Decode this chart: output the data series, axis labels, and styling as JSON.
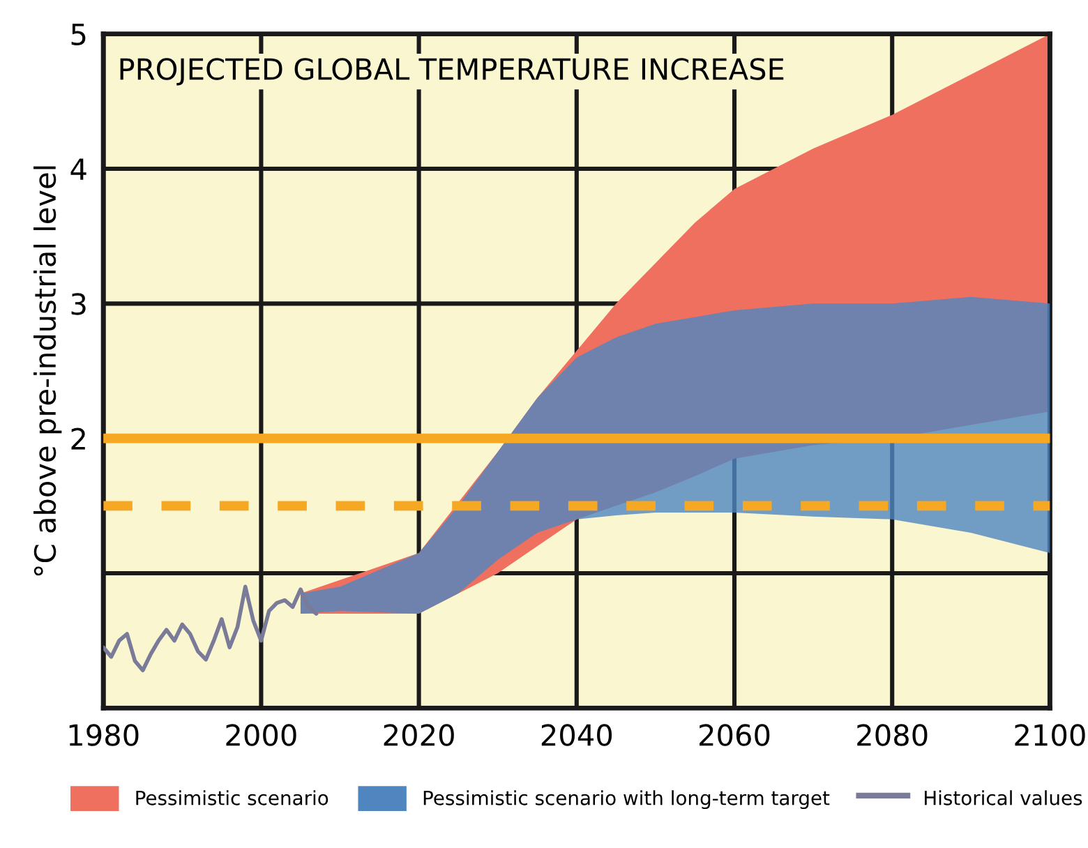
{
  "chart_data": {
    "type": "area",
    "title": "PROJECTED GLOBAL TEMPERATURE INCREASE",
    "ylabel": "°C above pre-industrial level",
    "xlim": [
      1980,
      2100
    ],
    "xticks": [
      1980,
      2000,
      2020,
      2040,
      2060,
      2080,
      2100
    ],
    "ylim": [
      0,
      5
    ],
    "yticks": [
      {
        "value": 1,
        "label": null
      },
      2,
      3,
      4,
      5
    ],
    "grid": true,
    "legend": "bottom",
    "series": [
      {
        "name": "Pessimistic scenario",
        "color": "#f07060",
        "x": [
          2005,
          2020,
          2030,
          2035,
          2040,
          2045,
          2050,
          2055,
          2060,
          2070,
          2080,
          2090,
          2100
        ],
        "values": [
          null,
          null,
          null,
          null,
          null,
          null,
          null,
          null,
          null,
          null,
          null,
          null,
          null
        ],
        "lower": [
          0.7,
          0.7,
          1.0,
          1.2,
          1.4,
          1.5,
          1.6,
          1.72,
          1.85,
          1.95,
          2.0,
          2.1,
          2.2
        ],
        "upper": [
          0.85,
          1.15,
          1.9,
          2.3,
          2.65,
          3.0,
          3.3,
          3.6,
          3.85,
          4.15,
          4.4,
          4.7,
          5.0
        ]
      },
      {
        "name": "Pessimistic scenario with long-term target",
        "color": "#4f86c0",
        "x": [
          2005,
          2010,
          2020,
          2025,
          2030,
          2035,
          2040,
          2045,
          2050,
          2060,
          2070,
          2080,
          2090,
          2100
        ],
        "values": [
          null,
          null,
          null,
          null,
          null,
          null,
          null,
          null,
          null,
          null,
          null,
          null,
          null,
          null
        ],
        "lower": [
          0.7,
          0.72,
          0.7,
          0.85,
          1.1,
          1.3,
          1.4,
          1.43,
          1.45,
          1.45,
          1.42,
          1.4,
          1.3,
          1.15
        ],
        "upper": [
          0.85,
          0.9,
          1.15,
          1.5,
          1.9,
          2.3,
          2.6,
          2.75,
          2.85,
          2.95,
          3.0,
          3.0,
          3.05,
          3.0
        ]
      },
      {
        "name": "Historical values",
        "type": "line",
        "color": "#7a7a99",
        "x": [
          1980,
          1981,
          1982,
          1983,
          1984,
          1985,
          1986,
          1987,
          1988,
          1989,
          1990,
          1991,
          1992,
          1993,
          1994,
          1995,
          1996,
          1997,
          1998,
          1999,
          2000,
          2001,
          2002,
          2003,
          2004,
          2005,
          2006,
          2007
        ],
        "values": [
          0.45,
          0.38,
          0.5,
          0.55,
          0.35,
          0.28,
          0.4,
          0.5,
          0.58,
          0.5,
          0.62,
          0.55,
          0.42,
          0.36,
          0.5,
          0.66,
          0.45,
          0.6,
          0.9,
          0.65,
          0.5,
          0.72,
          0.78,
          0.8,
          0.75,
          0.88,
          0.75,
          0.7
        ]
      }
    ],
    "ref_lines": [
      {
        "axis": "y",
        "value": 2,
        "color": "#f7a823",
        "line_style": "solid"
      },
      {
        "axis": "y",
        "value": 1.5,
        "color": "#f7a823",
        "line_style": "dashed"
      }
    ]
  }
}
